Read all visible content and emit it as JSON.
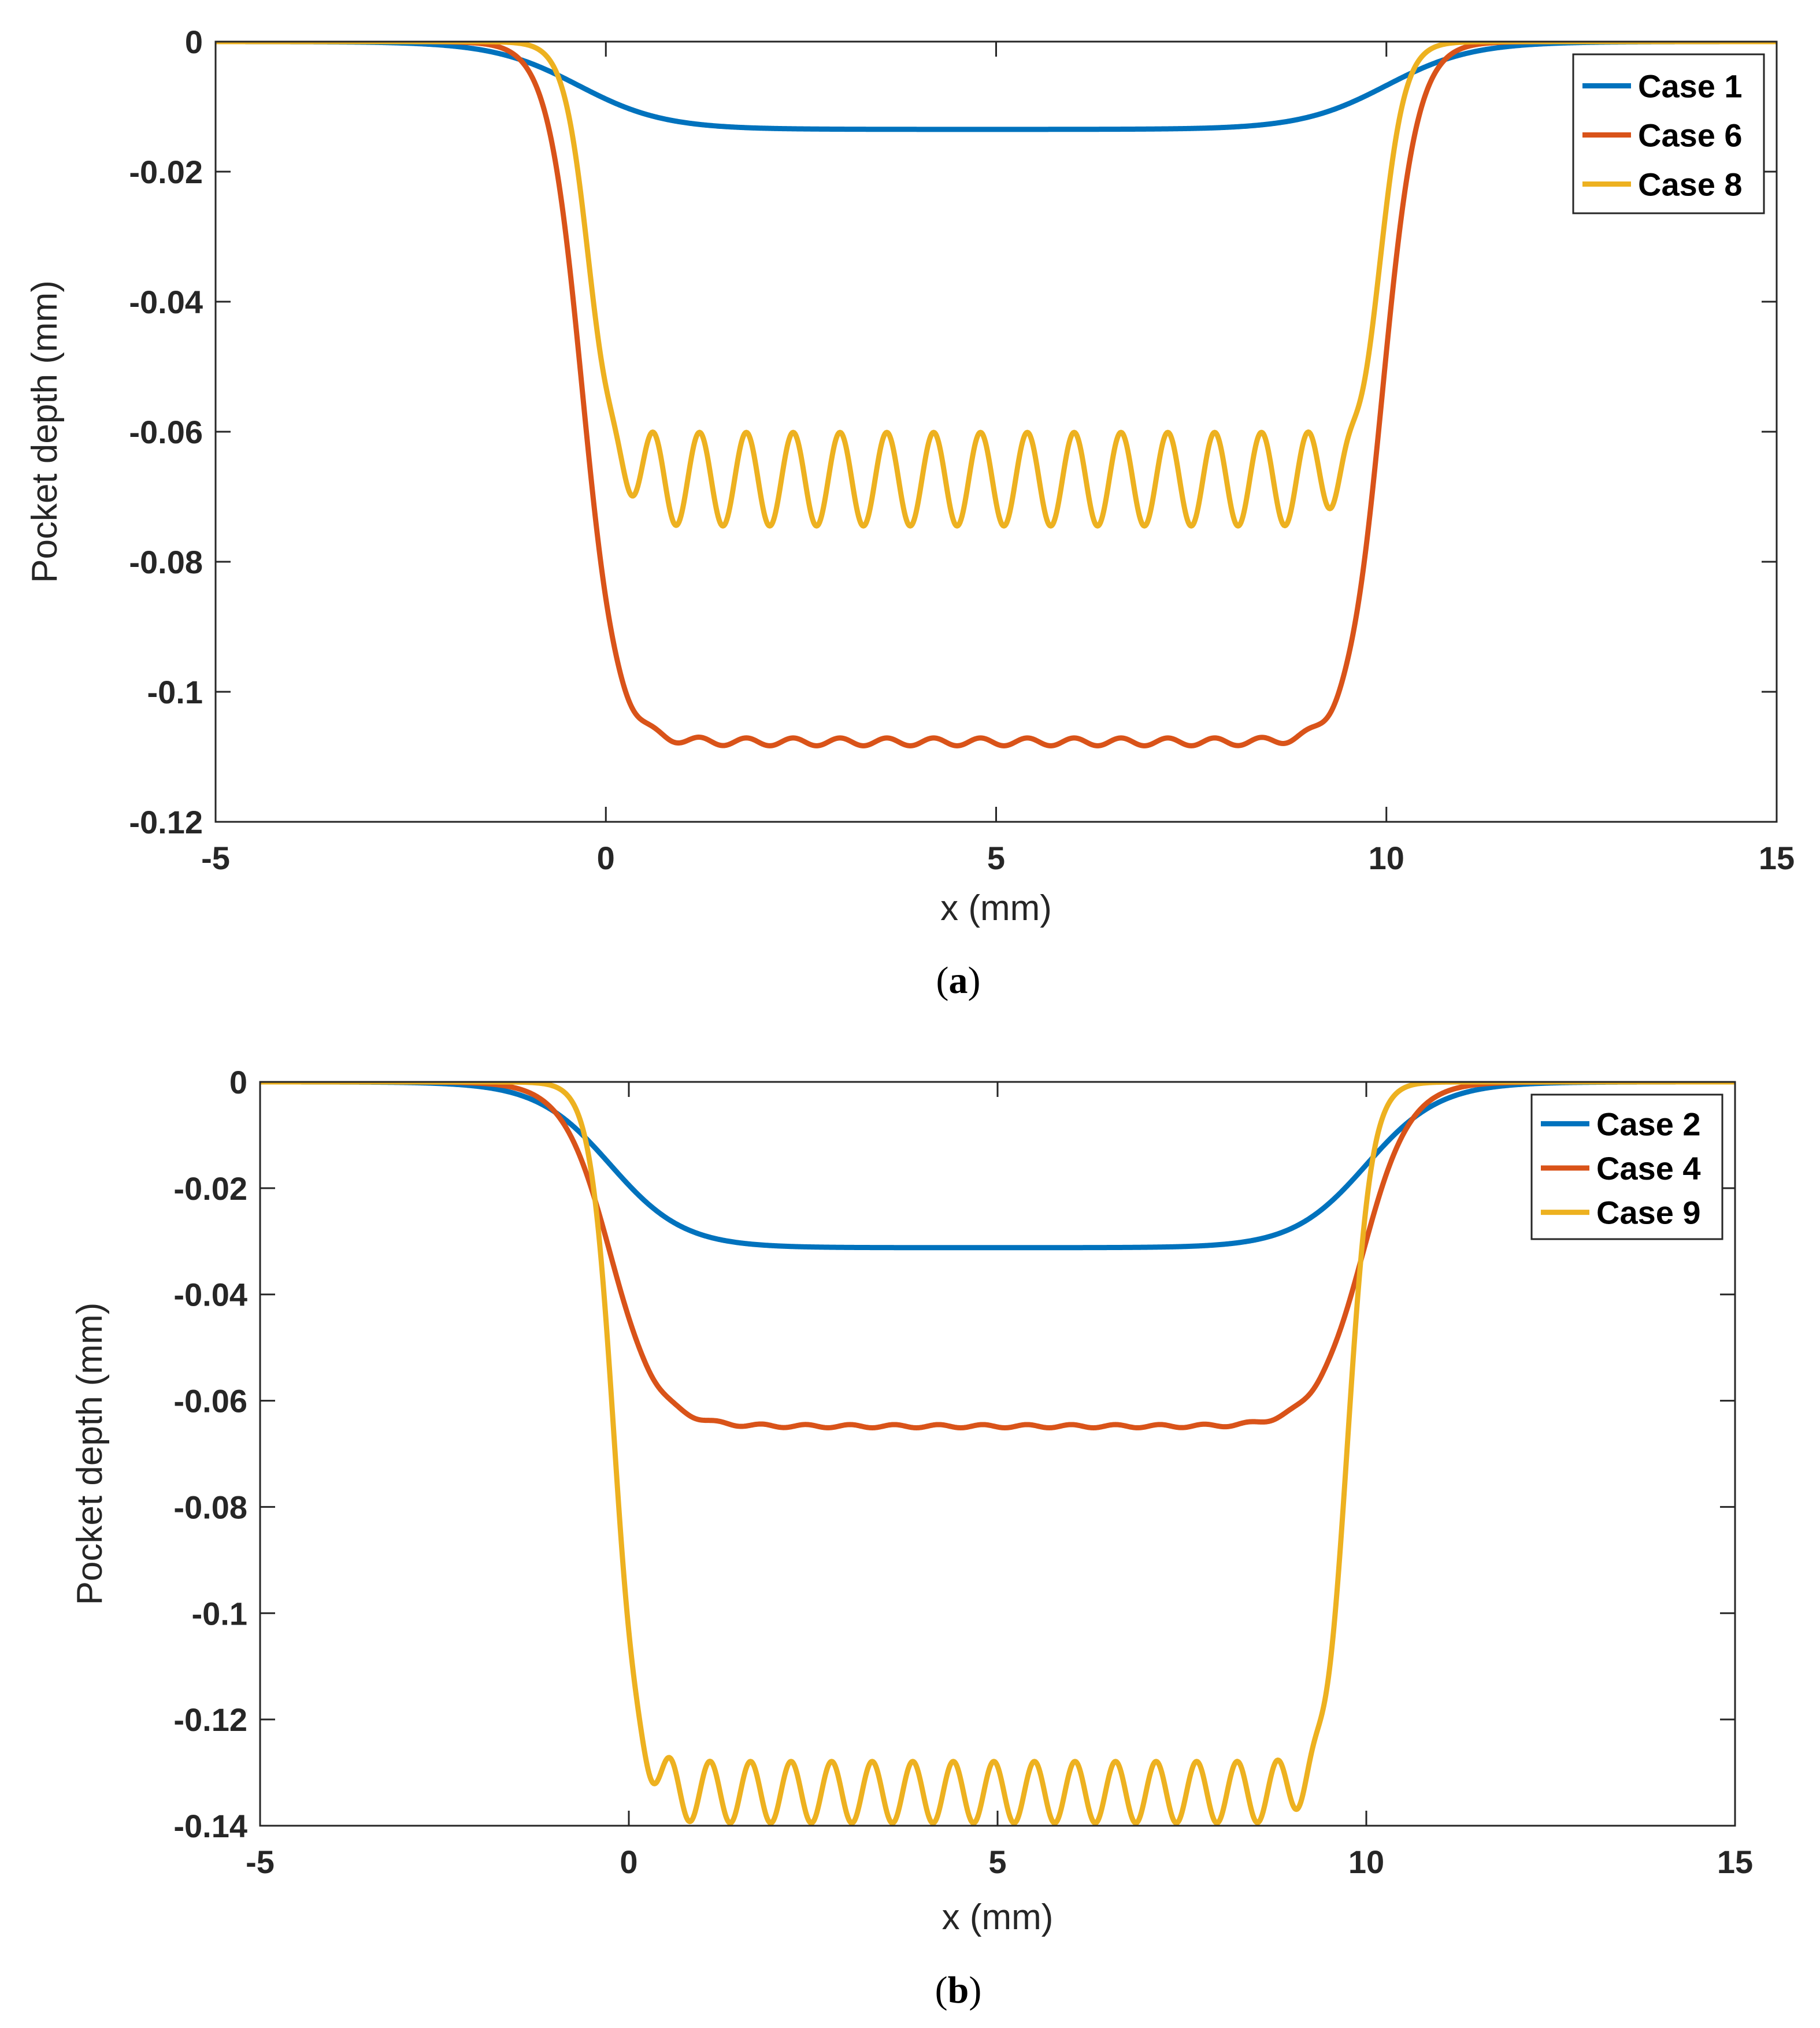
{
  "figure": {
    "colors": {
      "blue": "#0072BD",
      "orange": "#D95319",
      "yellow": "#EDB120",
      "axis": "#262626"
    }
  },
  "chart_data": [
    {
      "type": "line",
      "caption_letter": "a",
      "xlabel": "x (mm)",
      "ylabel": "Pocket depth (mm)",
      "xlim": [
        -5,
        15
      ],
      "ylim": [
        -0.12,
        0
      ],
      "xticks": [
        -5,
        0,
        5,
        10,
        15
      ],
      "xtick_labels": [
        "-5",
        "0",
        "5",
        "10",
        "15"
      ],
      "yticks": [
        0,
        -0.02,
        -0.04,
        -0.06,
        -0.08,
        -0.1,
        -0.12
      ],
      "ytick_labels": [
        "0",
        "-0.02",
        "-0.04",
        "-0.06",
        "-0.08",
        "-0.1",
        "-0.12"
      ],
      "legend_position": "top-right",
      "series": [
        {
          "name": "Case 1",
          "color": "#0072BD",
          "depth": -0.0135,
          "ripple_amplitude": 0.0,
          "ripple_period": 0.6,
          "ripple_phase": 0.0,
          "edge_left": -0.35,
          "edge_right": 10.0,
          "edge_width": 0.55
        },
        {
          "name": "Case 6",
          "color": "#D95319",
          "depth": -0.1077,
          "ripple_amplitude": 0.0006,
          "ripple_period": 0.6,
          "ripple_phase": 0.0,
          "edge_left": -0.3,
          "edge_right": 9.95,
          "edge_width": 0.22
        },
        {
          "name": "Case 8",
          "color": "#EDB120",
          "depth": -0.0673,
          "ripple_amplitude": 0.0072,
          "ripple_period": 0.6,
          "ripple_phase": 0.0,
          "edge_left": -0.22,
          "edge_right": 9.92,
          "edge_width": 0.16
        }
      ]
    },
    {
      "type": "line",
      "caption_letter": "b",
      "xlabel": "x (mm)",
      "ylabel": "Pocket depth (mm)",
      "xlim": [
        -5,
        15
      ],
      "ylim": [
        -0.14,
        0
      ],
      "xticks": [
        -5,
        0,
        5,
        10,
        15
      ],
      "xtick_labels": [
        "-5",
        "0",
        "5",
        "10",
        "15"
      ],
      "yticks": [
        0,
        -0.02,
        -0.04,
        -0.06,
        -0.08,
        -0.1,
        -0.12,
        -0.14
      ],
      "ytick_labels": [
        "0",
        "-0.02",
        "-0.04",
        "-0.06",
        "-0.08",
        "-0.1",
        "-0.12",
        "-0.14"
      ],
      "legend_position": "top-right",
      "series": [
        {
          "name": "Case 2",
          "color": "#0072BD",
          "depth": -0.0312,
          "ripple_amplitude": 0.0,
          "ripple_period": 0.6,
          "ripple_phase": 0.0,
          "edge_left": -0.25,
          "edge_right": 10.0,
          "edge_width": 0.5
        },
        {
          "name": "Case 4",
          "color": "#D95319",
          "depth": -0.0648,
          "ripple_amplitude": 0.0003,
          "ripple_period": 0.6,
          "ripple_phase": 0.0,
          "edge_left": -0.25,
          "edge_right": 9.95,
          "edge_width": 0.32
        },
        {
          "name": "Case 9",
          "color": "#EDB120",
          "depth": -0.1337,
          "ripple_amplitude": 0.0058,
          "ripple_period": 0.55,
          "ripple_phase": 0.0,
          "edge_left": -0.2,
          "edge_right": 9.75,
          "edge_width": 0.16
        }
      ]
    }
  ]
}
